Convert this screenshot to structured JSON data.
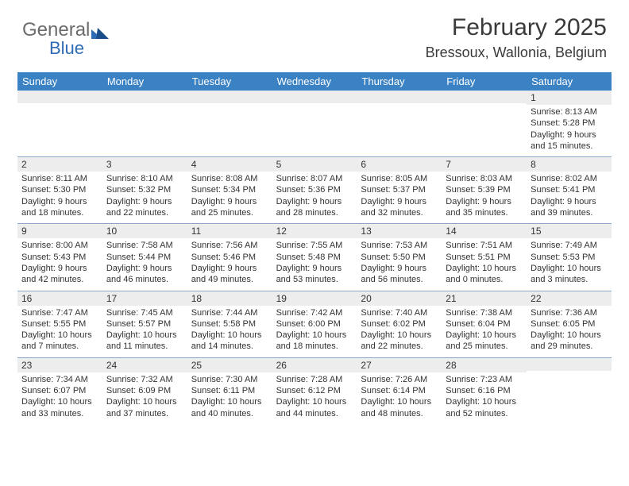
{
  "logo": {
    "text_gray": "General",
    "text_blue": "Blue"
  },
  "title": "February 2025",
  "location": "Bressoux, Wallonia, Belgium",
  "colors": {
    "header_bg": "#3b82c4",
    "header_text": "#ffffff",
    "daynum_bg": "#ededed",
    "border": "#8aa9c8",
    "text": "#333333",
    "logo_gray": "#6b6b6b",
    "logo_blue": "#2d6bb5"
  },
  "day_names": [
    "Sunday",
    "Monday",
    "Tuesday",
    "Wednesday",
    "Thursday",
    "Friday",
    "Saturday"
  ],
  "weeks": [
    [
      {
        "n": "",
        "sr": "",
        "ss": "",
        "dl1": "",
        "dl2": ""
      },
      {
        "n": "",
        "sr": "",
        "ss": "",
        "dl1": "",
        "dl2": ""
      },
      {
        "n": "",
        "sr": "",
        "ss": "",
        "dl1": "",
        "dl2": ""
      },
      {
        "n": "",
        "sr": "",
        "ss": "",
        "dl1": "",
        "dl2": ""
      },
      {
        "n": "",
        "sr": "",
        "ss": "",
        "dl1": "",
        "dl2": ""
      },
      {
        "n": "",
        "sr": "",
        "ss": "",
        "dl1": "",
        "dl2": ""
      },
      {
        "n": "1",
        "sr": "Sunrise: 8:13 AM",
        "ss": "Sunset: 5:28 PM",
        "dl1": "Daylight: 9 hours",
        "dl2": "and 15 minutes."
      }
    ],
    [
      {
        "n": "2",
        "sr": "Sunrise: 8:11 AM",
        "ss": "Sunset: 5:30 PM",
        "dl1": "Daylight: 9 hours",
        "dl2": "and 18 minutes."
      },
      {
        "n": "3",
        "sr": "Sunrise: 8:10 AM",
        "ss": "Sunset: 5:32 PM",
        "dl1": "Daylight: 9 hours",
        "dl2": "and 22 minutes."
      },
      {
        "n": "4",
        "sr": "Sunrise: 8:08 AM",
        "ss": "Sunset: 5:34 PM",
        "dl1": "Daylight: 9 hours",
        "dl2": "and 25 minutes."
      },
      {
        "n": "5",
        "sr": "Sunrise: 8:07 AM",
        "ss": "Sunset: 5:36 PM",
        "dl1": "Daylight: 9 hours",
        "dl2": "and 28 minutes."
      },
      {
        "n": "6",
        "sr": "Sunrise: 8:05 AM",
        "ss": "Sunset: 5:37 PM",
        "dl1": "Daylight: 9 hours",
        "dl2": "and 32 minutes."
      },
      {
        "n": "7",
        "sr": "Sunrise: 8:03 AM",
        "ss": "Sunset: 5:39 PM",
        "dl1": "Daylight: 9 hours",
        "dl2": "and 35 minutes."
      },
      {
        "n": "8",
        "sr": "Sunrise: 8:02 AM",
        "ss": "Sunset: 5:41 PM",
        "dl1": "Daylight: 9 hours",
        "dl2": "and 39 minutes."
      }
    ],
    [
      {
        "n": "9",
        "sr": "Sunrise: 8:00 AM",
        "ss": "Sunset: 5:43 PM",
        "dl1": "Daylight: 9 hours",
        "dl2": "and 42 minutes."
      },
      {
        "n": "10",
        "sr": "Sunrise: 7:58 AM",
        "ss": "Sunset: 5:44 PM",
        "dl1": "Daylight: 9 hours",
        "dl2": "and 46 minutes."
      },
      {
        "n": "11",
        "sr": "Sunrise: 7:56 AM",
        "ss": "Sunset: 5:46 PM",
        "dl1": "Daylight: 9 hours",
        "dl2": "and 49 minutes."
      },
      {
        "n": "12",
        "sr": "Sunrise: 7:55 AM",
        "ss": "Sunset: 5:48 PM",
        "dl1": "Daylight: 9 hours",
        "dl2": "and 53 minutes."
      },
      {
        "n": "13",
        "sr": "Sunrise: 7:53 AM",
        "ss": "Sunset: 5:50 PM",
        "dl1": "Daylight: 9 hours",
        "dl2": "and 56 minutes."
      },
      {
        "n": "14",
        "sr": "Sunrise: 7:51 AM",
        "ss": "Sunset: 5:51 PM",
        "dl1": "Daylight: 10 hours",
        "dl2": "and 0 minutes."
      },
      {
        "n": "15",
        "sr": "Sunrise: 7:49 AM",
        "ss": "Sunset: 5:53 PM",
        "dl1": "Daylight: 10 hours",
        "dl2": "and 3 minutes."
      }
    ],
    [
      {
        "n": "16",
        "sr": "Sunrise: 7:47 AM",
        "ss": "Sunset: 5:55 PM",
        "dl1": "Daylight: 10 hours",
        "dl2": "and 7 minutes."
      },
      {
        "n": "17",
        "sr": "Sunrise: 7:45 AM",
        "ss": "Sunset: 5:57 PM",
        "dl1": "Daylight: 10 hours",
        "dl2": "and 11 minutes."
      },
      {
        "n": "18",
        "sr": "Sunrise: 7:44 AM",
        "ss": "Sunset: 5:58 PM",
        "dl1": "Daylight: 10 hours",
        "dl2": "and 14 minutes."
      },
      {
        "n": "19",
        "sr": "Sunrise: 7:42 AM",
        "ss": "Sunset: 6:00 PM",
        "dl1": "Daylight: 10 hours",
        "dl2": "and 18 minutes."
      },
      {
        "n": "20",
        "sr": "Sunrise: 7:40 AM",
        "ss": "Sunset: 6:02 PM",
        "dl1": "Daylight: 10 hours",
        "dl2": "and 22 minutes."
      },
      {
        "n": "21",
        "sr": "Sunrise: 7:38 AM",
        "ss": "Sunset: 6:04 PM",
        "dl1": "Daylight: 10 hours",
        "dl2": "and 25 minutes."
      },
      {
        "n": "22",
        "sr": "Sunrise: 7:36 AM",
        "ss": "Sunset: 6:05 PM",
        "dl1": "Daylight: 10 hours",
        "dl2": "and 29 minutes."
      }
    ],
    [
      {
        "n": "23",
        "sr": "Sunrise: 7:34 AM",
        "ss": "Sunset: 6:07 PM",
        "dl1": "Daylight: 10 hours",
        "dl2": "and 33 minutes."
      },
      {
        "n": "24",
        "sr": "Sunrise: 7:32 AM",
        "ss": "Sunset: 6:09 PM",
        "dl1": "Daylight: 10 hours",
        "dl2": "and 37 minutes."
      },
      {
        "n": "25",
        "sr": "Sunrise: 7:30 AM",
        "ss": "Sunset: 6:11 PM",
        "dl1": "Daylight: 10 hours",
        "dl2": "and 40 minutes."
      },
      {
        "n": "26",
        "sr": "Sunrise: 7:28 AM",
        "ss": "Sunset: 6:12 PM",
        "dl1": "Daylight: 10 hours",
        "dl2": "and 44 minutes."
      },
      {
        "n": "27",
        "sr": "Sunrise: 7:26 AM",
        "ss": "Sunset: 6:14 PM",
        "dl1": "Daylight: 10 hours",
        "dl2": "and 48 minutes."
      },
      {
        "n": "28",
        "sr": "Sunrise: 7:23 AM",
        "ss": "Sunset: 6:16 PM",
        "dl1": "Daylight: 10 hours",
        "dl2": "and 52 minutes."
      },
      {
        "n": "",
        "sr": "",
        "ss": "",
        "dl1": "",
        "dl2": ""
      }
    ]
  ]
}
